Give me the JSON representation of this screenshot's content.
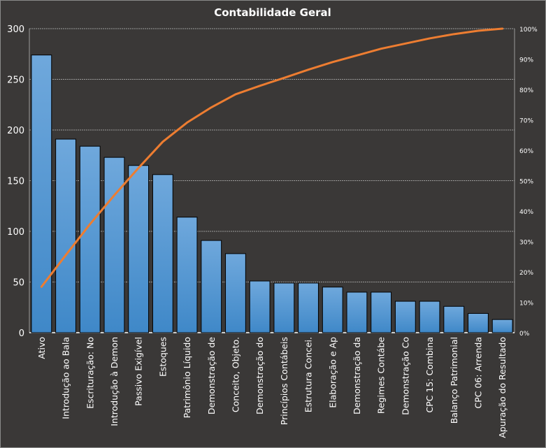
{
  "chart_data": {
    "type": "bar",
    "title": "Contabilidade Geral",
    "categories": [
      "Ativo",
      "Introdução  ao Bala",
      "Escrituração: No",
      "Introdução  à Demon",
      "Passivo Exigível",
      "Estoques",
      "Patrimônio  Líquido",
      "Demonstração de",
      "Conceito, Objeto.",
      "Demonstração do",
      "Princípios Contábeis",
      "Estrutura Concei.",
      "Elaboração e Ap",
      "Demonstração da",
      "Regimes Contábe",
      "Demonstração Co",
      "CPC 15: Combina",
      "Balanço Patrimonial",
      "CPC 06: Arrenda",
      "Apuração do Resultado"
    ],
    "series": [
      {
        "type": "bar",
        "values": [
          274,
          191,
          184,
          173,
          165,
          156,
          114,
          91,
          78,
          51,
          49,
          49,
          45,
          40,
          40,
          31,
          31,
          26,
          19,
          13
        ],
        "color": "#4a8fd0"
      },
      {
        "type": "line",
        "axis": "right",
        "values": [
          15.1,
          25.5,
          35.7,
          45.2,
          54.2,
          62.8,
          69.1,
          74.1,
          78.4,
          81.2,
          83.8,
          86.5,
          89.0,
          91.2,
          93.4,
          95.1,
          96.8,
          98.2,
          99.3,
          100
        ],
        "color": "#ed7d31"
      }
    ],
    "ylim": [
      0,
      300
    ],
    "yticks": [
      "0",
      "50",
      "100",
      "150",
      "200",
      "250",
      "300"
    ],
    "y2lim": [
      0,
      100
    ],
    "y2ticks": [
      "0%",
      "10%",
      "20%",
      "30%",
      "40%",
      "50%",
      "60%",
      "70%",
      "80%",
      "90%",
      "100%"
    ],
    "grid": true,
    "background": "#3a3837"
  }
}
